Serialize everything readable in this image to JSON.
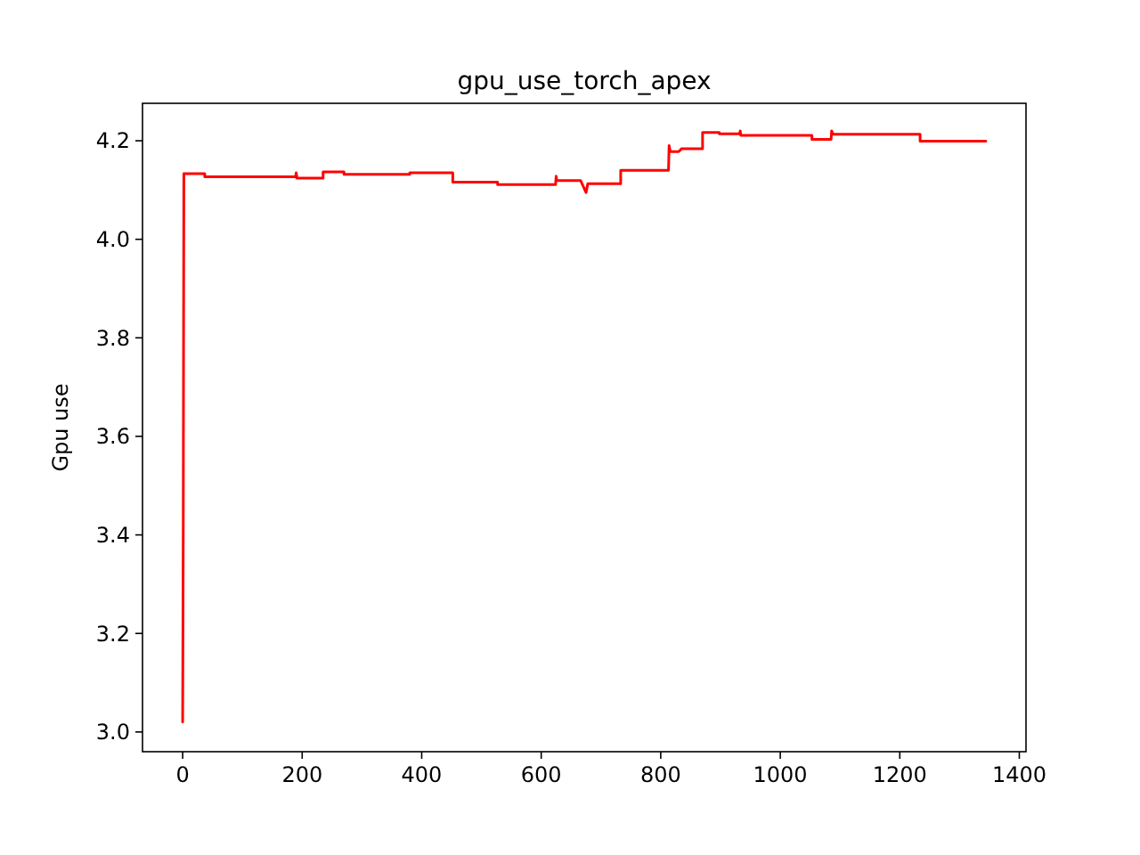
{
  "chart_data": {
    "type": "line",
    "title": "gpu_use_torch_apex",
    "ylabel": "Gpu use",
    "x": [
      0,
      1,
      2,
      37,
      37,
      189,
      190,
      191,
      191,
      235,
      235,
      270,
      270,
      380,
      380,
      452,
      452,
      527,
      527,
      624,
      625,
      626,
      666,
      675,
      678,
      733,
      733,
      813,
      814,
      816,
      830,
      835,
      870,
      870,
      898,
      898,
      932,
      933,
      934,
      1053,
      1053,
      1085,
      1086,
      1088,
      1234,
      1234,
      1344
    ],
    "series": [
      {
        "color": "#ff0000",
        "values": [
          3.02,
          3.42,
          4.133,
          4.133,
          4.127,
          4.127,
          4.135,
          4.127,
          4.124,
          4.124,
          4.137,
          4.137,
          4.132,
          4.132,
          4.135,
          4.135,
          4.116,
          4.116,
          4.111,
          4.111,
          4.128,
          4.119,
          4.119,
          4.095,
          4.113,
          4.113,
          4.14,
          4.14,
          4.19,
          4.178,
          4.178,
          4.184,
          4.184,
          4.217,
          4.217,
          4.214,
          4.214,
          4.22,
          4.211,
          4.211,
          4.203,
          4.203,
          4.22,
          4.213,
          4.213,
          4.199,
          4.199
        ]
      }
    ],
    "xlim": [
      -67.2,
      1411.2
    ],
    "ylim": [
      2.96,
      4.276
    ],
    "xticks": [
      0,
      200,
      400,
      600,
      800,
      1000,
      1200,
      1400
    ],
    "yticks": [
      {
        "value": 3,
        "label": "3.0"
      },
      {
        "value": 3.2,
        "label": "3.2"
      },
      {
        "value": 3.4,
        "label": "3.4"
      },
      {
        "value": 3.6,
        "label": "3.6"
      },
      {
        "value": 3.8,
        "label": "3.8"
      },
      {
        "value": 4,
        "label": "4.0"
      },
      {
        "value": 4.2,
        "label": "4.2"
      }
    ],
    "grid": false,
    "marker": "none",
    "line_style": "solid"
  }
}
